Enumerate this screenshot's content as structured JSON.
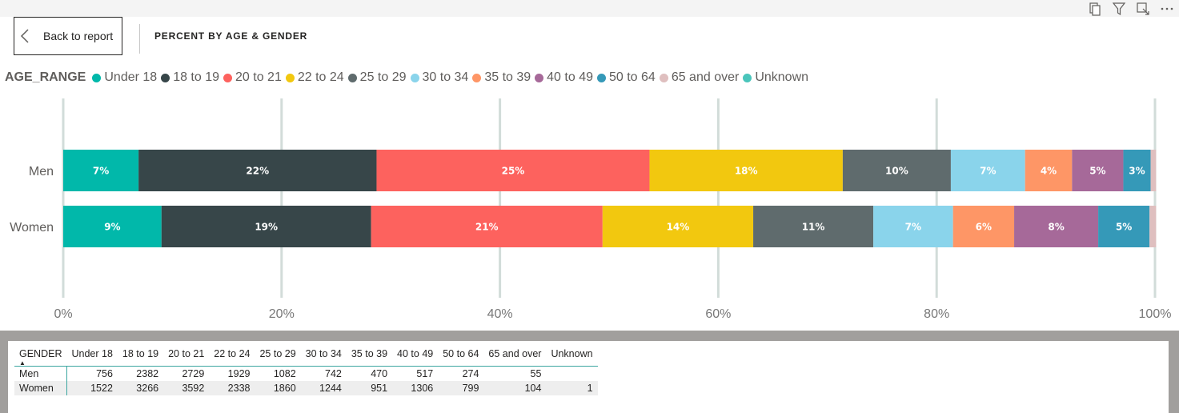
{
  "header": {
    "back_label": "Back to report",
    "title": "PERCENT BY AGE & GENDER"
  },
  "toolbar_icons": [
    "copy-icon",
    "filter-icon",
    "focus-mode-icon",
    "more-options-icon"
  ],
  "legend": {
    "title": "AGE_RANGE",
    "items": [
      {
        "label": "Under 18",
        "color": "#01B8AA"
      },
      {
        "label": "18 to 19",
        "color": "#374649"
      },
      {
        "label": "20 to 21",
        "color": "#FD625E"
      },
      {
        "label": "22 to 24",
        "color": "#F2C80F"
      },
      {
        "label": "25 to 29",
        "color": "#5F6B6D"
      },
      {
        "label": "30 to 34",
        "color": "#8AD4EB"
      },
      {
        "label": "35 to 39",
        "color": "#FE9666"
      },
      {
        "label": "40 to 49",
        "color": "#A66999"
      },
      {
        "label": "50 to 64",
        "color": "#3599B8"
      },
      {
        "label": "65 and over",
        "color": "#DFBFBF"
      },
      {
        "label": "Unknown",
        "color": "#4AC5BB"
      }
    ]
  },
  "chart_data": {
    "type": "bar",
    "orientation": "horizontal",
    "stacked": "100%",
    "categories": [
      "Men",
      "Women"
    ],
    "series": [
      {
        "name": "Under 18",
        "values": [
          6.9,
          9.0
        ],
        "labels": [
          "7%",
          "9%"
        ]
      },
      {
        "name": "18 to 19",
        "values": [
          21.8,
          19.2
        ],
        "labels": [
          "22%",
          "19%"
        ]
      },
      {
        "name": "20 to 21",
        "values": [
          25.0,
          21.2
        ],
        "labels": [
          "25%",
          "21%"
        ]
      },
      {
        "name": "22 to 24",
        "values": [
          17.7,
          13.8
        ],
        "labels": [
          "18%",
          "14%"
        ]
      },
      {
        "name": "25 to 29",
        "values": [
          9.9,
          11.0
        ],
        "labels": [
          "10%",
          "11%"
        ]
      },
      {
        "name": "30 to 34",
        "values": [
          6.8,
          7.3
        ],
        "labels": [
          "7%",
          "7%"
        ]
      },
      {
        "name": "35 to 39",
        "values": [
          4.3,
          5.6
        ],
        "labels": [
          "4%",
          "6%"
        ]
      },
      {
        "name": "40 to 49",
        "values": [
          4.7,
          7.7
        ],
        "labels": [
          "5%",
          "8%"
        ]
      },
      {
        "name": "50 to 64",
        "values": [
          2.5,
          4.7
        ],
        "labels": [
          "3%",
          "5%"
        ]
      },
      {
        "name": "65 and over",
        "values": [
          0.5,
          0.6
        ],
        "labels": [
          "",
          ""
        ]
      },
      {
        "name": "Unknown",
        "values": [
          0.0,
          0.0
        ],
        "labels": [
          "",
          ""
        ]
      }
    ],
    "xticks": [
      "0%",
      "20%",
      "40%",
      "60%",
      "80%",
      "100%"
    ],
    "xlim": [
      0,
      100
    ],
    "grid": true,
    "legend_position": "top-left"
  },
  "table": {
    "columns": [
      "GENDER",
      "Under 18",
      "18 to 19",
      "20 to 21",
      "22 to 24",
      "25 to 29",
      "30 to 34",
      "35 to 39",
      "40 to 49",
      "50 to 64",
      "65 and over",
      "Unknown"
    ],
    "sort_indicator": "▲",
    "rows": [
      [
        "Men",
        "756",
        "2382",
        "2729",
        "1929",
        "1082",
        "742",
        "470",
        "517",
        "274",
        "55",
        ""
      ],
      [
        "Women",
        "1522",
        "3266",
        "3592",
        "2338",
        "1860",
        "1244",
        "951",
        "1306",
        "799",
        "104",
        "1"
      ]
    ]
  }
}
